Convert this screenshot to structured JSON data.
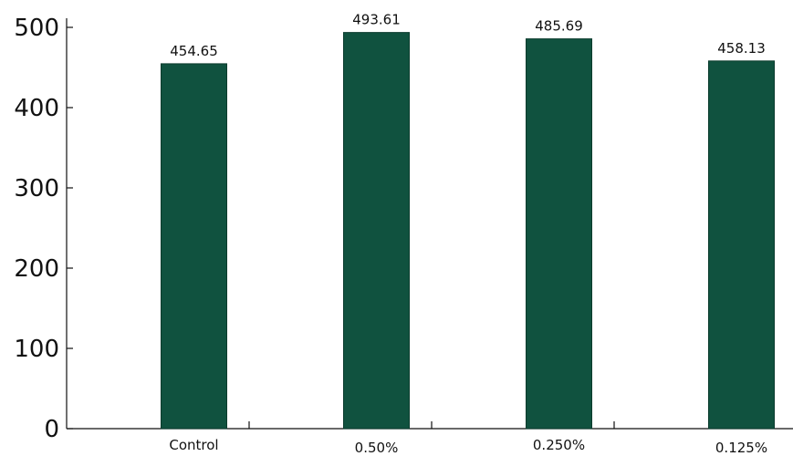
{
  "chart_data": {
    "type": "bar",
    "title": "",
    "xlabel": "",
    "ylabel": "",
    "categories": [
      "Control",
      "0.50%",
      "0.250%",
      "0.125%"
    ],
    "values": [
      454.65,
      493.61,
      485.69,
      458.13
    ],
    "value_labels": [
      "454.65",
      "493.61",
      "485.69",
      "458.13"
    ],
    "ylim": [
      0,
      500
    ],
    "yticks": [
      0,
      100,
      200,
      300,
      400,
      500
    ],
    "ytick_labels": [
      "0",
      "100",
      "200",
      "300",
      "400",
      "500"
    ],
    "bar_color": "#10523f",
    "grid": false,
    "legend": "none"
  }
}
